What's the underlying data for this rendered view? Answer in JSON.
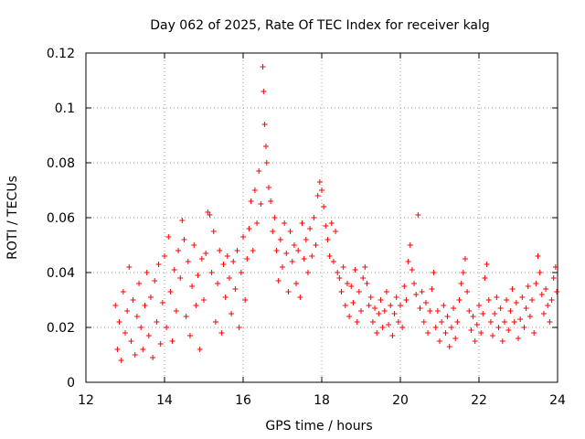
{
  "chart_data": {
    "type": "scatter",
    "title": "Day 062 of 2025, Rate Of TEC Index for receiver kalg",
    "xlabel": "GPS time / hours",
    "ylabel": "ROTI / TECUs",
    "xlim": [
      12,
      24
    ],
    "ylim": [
      0,
      0.12
    ],
    "xticks": [
      12,
      14,
      16,
      18,
      20,
      22,
      24
    ],
    "yticks": [
      0,
      0.02,
      0.04,
      0.06,
      0.08,
      0.1,
      0.12
    ],
    "xtick_labels": [
      "12",
      "14",
      "16",
      "18",
      "20",
      "22",
      "24"
    ],
    "ytick_labels": [
      "0",
      "0.02",
      "0.04",
      "0.06",
      "0.08",
      "0.1",
      "0.12"
    ],
    "grid": true,
    "marker": "+",
    "marker_color": "#ff0000",
    "series": [
      {
        "name": "ROTI",
        "points": [
          [
            12.75,
            0.028
          ],
          [
            12.8,
            0.012
          ],
          [
            12.85,
            0.022
          ],
          [
            12.9,
            0.008
          ],
          [
            12.95,
            0.033
          ],
          [
            13.0,
            0.018
          ],
          [
            13.05,
            0.026
          ],
          [
            13.1,
            0.042
          ],
          [
            13.15,
            0.015
          ],
          [
            13.2,
            0.03
          ],
          [
            13.25,
            0.01
          ],
          [
            13.3,
            0.024
          ],
          [
            13.35,
            0.036
          ],
          [
            13.4,
            0.02
          ],
          [
            13.45,
            0.012
          ],
          [
            13.5,
            0.028
          ],
          [
            13.55,
            0.04
          ],
          [
            13.6,
            0.017
          ],
          [
            13.65,
            0.031
          ],
          [
            13.7,
            0.009
          ],
          [
            13.75,
            0.037
          ],
          [
            13.8,
            0.022
          ],
          [
            13.85,
            0.043
          ],
          [
            13.9,
            0.014
          ],
          [
            13.95,
            0.029
          ],
          [
            14.0,
            0.046
          ],
          [
            14.05,
            0.02
          ],
          [
            14.1,
            0.053
          ],
          [
            14.15,
            0.033
          ],
          [
            14.2,
            0.015
          ],
          [
            14.25,
            0.041
          ],
          [
            14.3,
            0.026
          ],
          [
            14.35,
            0.048
          ],
          [
            14.4,
            0.038
          ],
          [
            14.45,
            0.059
          ],
          [
            14.5,
            0.052
          ],
          [
            14.55,
            0.024
          ],
          [
            14.6,
            0.044
          ],
          [
            14.65,
            0.017
          ],
          [
            14.7,
            0.035
          ],
          [
            14.75,
            0.05
          ],
          [
            14.8,
            0.028
          ],
          [
            14.85,
            0.039
          ],
          [
            14.9,
            0.012
          ],
          [
            14.95,
            0.045
          ],
          [
            15.0,
            0.03
          ],
          [
            15.05,
            0.047
          ],
          [
            15.1,
            0.062
          ],
          [
            15.15,
            0.061
          ],
          [
            15.2,
            0.04
          ],
          [
            15.25,
            0.055
          ],
          [
            15.3,
            0.022
          ],
          [
            15.35,
            0.036
          ],
          [
            15.4,
            0.048
          ],
          [
            15.45,
            0.018
          ],
          [
            15.5,
            0.043
          ],
          [
            15.55,
            0.031
          ],
          [
            15.6,
            0.046
          ],
          [
            15.65,
            0.038
          ],
          [
            15.7,
            0.025
          ],
          [
            15.75,
            0.044
          ],
          [
            15.8,
            0.034
          ],
          [
            15.85,
            0.048
          ],
          [
            15.9,
            0.02
          ],
          [
            15.95,
            0.04
          ],
          [
            16.0,
            0.053
          ],
          [
            16.05,
            0.03
          ],
          [
            16.1,
            0.045
          ],
          [
            16.15,
            0.056
          ],
          [
            16.2,
            0.066
          ],
          [
            16.25,
            0.048
          ],
          [
            16.3,
            0.07
          ],
          [
            16.35,
            0.058
          ],
          [
            16.4,
            0.077
          ],
          [
            16.45,
            0.065
          ],
          [
            16.5,
            0.115
          ],
          [
            16.52,
            0.106
          ],
          [
            16.55,
            0.094
          ],
          [
            16.58,
            0.086
          ],
          [
            16.6,
            0.08
          ],
          [
            16.65,
            0.071
          ],
          [
            16.7,
            0.066
          ],
          [
            16.75,
            0.055
          ],
          [
            16.8,
            0.06
          ],
          [
            16.85,
            0.048
          ],
          [
            16.9,
            0.037
          ],
          [
            16.95,
            0.052
          ],
          [
            17.0,
            0.042
          ],
          [
            17.05,
            0.058
          ],
          [
            17.1,
            0.047
          ],
          [
            17.15,
            0.033
          ],
          [
            17.2,
            0.055
          ],
          [
            17.25,
            0.044
          ],
          [
            17.3,
            0.05
          ],
          [
            17.35,
            0.036
          ],
          [
            17.4,
            0.048
          ],
          [
            17.45,
            0.031
          ],
          [
            17.5,
            0.058
          ],
          [
            17.55,
            0.045
          ],
          [
            17.6,
            0.052
          ],
          [
            17.65,
            0.04
          ],
          [
            17.7,
            0.056
          ],
          [
            17.75,
            0.046
          ],
          [
            17.8,
            0.06
          ],
          [
            17.85,
            0.05
          ],
          [
            17.9,
            0.068
          ],
          [
            17.95,
            0.073
          ],
          [
            18.0,
            0.07
          ],
          [
            18.05,
            0.064
          ],
          [
            18.1,
            0.057
          ],
          [
            18.15,
            0.052
          ],
          [
            18.2,
            0.046
          ],
          [
            18.25,
            0.058
          ],
          [
            18.3,
            0.044
          ],
          [
            18.35,
            0.055
          ],
          [
            18.4,
            0.04
          ],
          [
            18.45,
            0.038
          ],
          [
            18.5,
            0.033
          ],
          [
            18.55,
            0.042
          ],
          [
            18.6,
            0.028
          ],
          [
            18.65,
            0.036
          ],
          [
            18.7,
            0.024
          ],
          [
            18.75,
            0.035
          ],
          [
            18.8,
            0.029
          ],
          [
            18.85,
            0.041
          ],
          [
            18.9,
            0.022
          ],
          [
            18.95,
            0.033
          ],
          [
            19.0,
            0.026
          ],
          [
            19.05,
            0.038
          ],
          [
            19.1,
            0.042
          ],
          [
            19.15,
            0.036
          ],
          [
            19.2,
            0.028
          ],
          [
            19.25,
            0.031
          ],
          [
            19.3,
            0.022
          ],
          [
            19.35,
            0.027
          ],
          [
            19.4,
            0.018
          ],
          [
            19.45,
            0.025
          ],
          [
            19.5,
            0.03
          ],
          [
            19.55,
            0.02
          ],
          [
            19.6,
            0.026
          ],
          [
            19.65,
            0.033
          ],
          [
            19.7,
            0.021
          ],
          [
            19.75,
            0.028
          ],
          [
            19.8,
            0.017
          ],
          [
            19.85,
            0.025
          ],
          [
            19.9,
            0.031
          ],
          [
            19.95,
            0.022
          ],
          [
            20.0,
            0.028
          ],
          [
            20.05,
            0.02
          ],
          [
            20.1,
            0.035
          ],
          [
            20.15,
            0.03
          ],
          [
            20.2,
            0.044
          ],
          [
            20.25,
            0.05
          ],
          [
            20.3,
            0.041
          ],
          [
            20.35,
            0.036
          ],
          [
            20.4,
            0.032
          ],
          [
            20.45,
            0.061
          ],
          [
            20.5,
            0.027
          ],
          [
            20.55,
            0.033
          ],
          [
            20.6,
            0.022
          ],
          [
            20.65,
            0.029
          ],
          [
            20.7,
            0.018
          ],
          [
            20.75,
            0.026
          ],
          [
            20.8,
            0.034
          ],
          [
            20.85,
            0.04
          ],
          [
            20.9,
            0.02
          ],
          [
            20.95,
            0.026
          ],
          [
            21.0,
            0.015
          ],
          [
            21.05,
            0.022
          ],
          [
            21.1,
            0.028
          ],
          [
            21.15,
            0.018
          ],
          [
            21.2,
            0.024
          ],
          [
            21.25,
            0.013
          ],
          [
            21.3,
            0.02
          ],
          [
            21.35,
            0.027
          ],
          [
            21.4,
            0.016
          ],
          [
            21.45,
            0.022
          ],
          [
            21.5,
            0.03
          ],
          [
            21.55,
            0.036
          ],
          [
            21.6,
            0.04
          ],
          [
            21.65,
            0.045
          ],
          [
            21.7,
            0.033
          ],
          [
            21.75,
            0.026
          ],
          [
            21.8,
            0.019
          ],
          [
            21.85,
            0.024
          ],
          [
            21.9,
            0.015
          ],
          [
            21.95,
            0.021
          ],
          [
            22.0,
            0.028
          ],
          [
            22.05,
            0.018
          ],
          [
            22.1,
            0.025
          ],
          [
            22.15,
            0.038
          ],
          [
            22.2,
            0.043
          ],
          [
            22.25,
            0.03
          ],
          [
            22.3,
            0.022
          ],
          [
            22.35,
            0.017
          ],
          [
            22.4,
            0.025
          ],
          [
            22.45,
            0.031
          ],
          [
            22.5,
            0.02
          ],
          [
            22.55,
            0.027
          ],
          [
            22.6,
            0.015
          ],
          [
            22.65,
            0.022
          ],
          [
            22.7,
            0.03
          ],
          [
            22.75,
            0.019
          ],
          [
            22.8,
            0.026
          ],
          [
            22.85,
            0.034
          ],
          [
            22.9,
            0.022
          ],
          [
            22.95,
            0.029
          ],
          [
            23.0,
            0.016
          ],
          [
            23.05,
            0.023
          ],
          [
            23.1,
            0.031
          ],
          [
            23.15,
            0.02
          ],
          [
            23.2,
            0.027
          ],
          [
            23.25,
            0.035
          ],
          [
            23.3,
            0.024
          ],
          [
            23.35,
            0.03
          ],
          [
            23.4,
            0.018
          ],
          [
            23.45,
            0.036
          ],
          [
            23.5,
            0.046
          ],
          [
            23.55,
            0.04
          ],
          [
            23.6,
            0.032
          ],
          [
            23.65,
            0.025
          ],
          [
            23.7,
            0.034
          ],
          [
            23.75,
            0.028
          ],
          [
            23.8,
            0.022
          ],
          [
            23.85,
            0.03
          ],
          [
            23.9,
            0.038
          ],
          [
            23.95,
            0.042
          ],
          [
            23.98,
            0.033
          ]
        ]
      }
    ]
  }
}
